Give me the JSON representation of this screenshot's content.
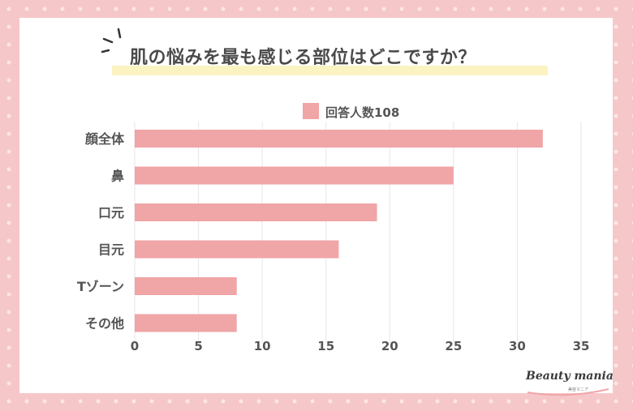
{
  "title": "肌の悩みを最も感じる部位はどこですか？",
  "logo": {
    "text": "Beauty mania",
    "sub": "美容マニア"
  },
  "colors": {
    "bar": "#f0a5a7",
    "background": "#f6c7c9",
    "grid": "#e6e6e6",
    "text": "#555555"
  },
  "chart_data": {
    "type": "bar",
    "orientation": "horizontal",
    "title": "肌の悩みを最も感じる部位はどこですか？",
    "categories": [
      "顔全体",
      "鼻",
      "口元",
      "目元",
      "Tゾーン",
      "その他"
    ],
    "series": [
      {
        "name": "回答人数108",
        "values": [
          32,
          25,
          19,
          16,
          8,
          8
        ]
      }
    ],
    "xlim": [
      0,
      35
    ],
    "xticks": [
      0,
      5,
      10,
      15,
      20,
      25,
      30,
      35
    ],
    "grid": true,
    "legend": "top-center"
  }
}
